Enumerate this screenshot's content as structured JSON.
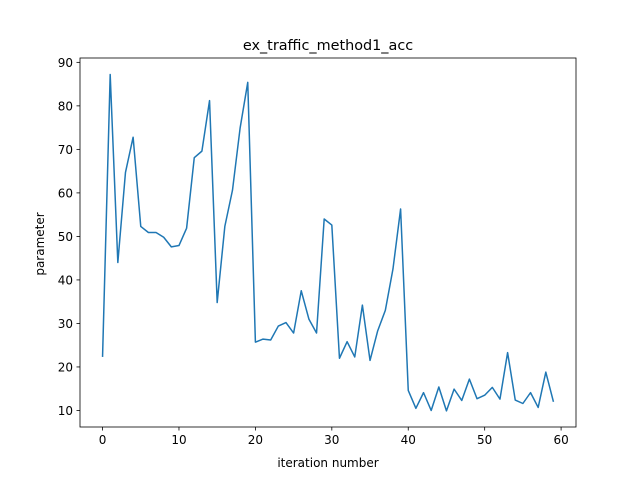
{
  "chart_data": {
    "type": "line",
    "title": "ex_traffic_method1_acc",
    "xlabel": "iteration number",
    "ylabel": "parameter",
    "xlim": [
      -2.95,
      61.95
    ],
    "ylim": [
      6.2,
      91.0
    ],
    "xticks": [
      0,
      10,
      20,
      30,
      40,
      50,
      60
    ],
    "yticks": [
      10,
      20,
      30,
      40,
      50,
      60,
      70,
      80,
      90
    ],
    "grid": false,
    "legend": "none",
    "series": [
      {
        "color": "#1f77b4",
        "x": [
          0,
          1,
          2,
          3,
          4,
          5,
          6,
          7,
          8,
          9,
          10,
          11,
          12,
          13,
          14,
          15,
          16,
          17,
          18,
          19,
          20,
          21,
          22,
          23,
          24,
          25,
          26,
          27,
          28,
          29,
          30,
          31,
          32,
          33,
          34,
          35,
          36,
          37,
          38,
          39,
          40,
          41,
          42,
          43,
          44,
          45,
          46,
          47,
          48,
          49,
          50,
          51,
          52,
          53,
          54,
          55,
          56,
          57,
          58,
          59
        ],
        "y": [
          22.3,
          87.2,
          44.0,
          64.7,
          72.8,
          52.3,
          50.9,
          50.9,
          49.8,
          47.6,
          47.9,
          51.9,
          68.1,
          69.6,
          81.2,
          34.8,
          52.3,
          60.6,
          74.9,
          85.4,
          25.7,
          26.4,
          26.2,
          29.4,
          30.2,
          27.8,
          37.5,
          31.0,
          27.8,
          54.0,
          52.6,
          22.0,
          25.8,
          22.3,
          34.2,
          21.5,
          28.3,
          33.0,
          42.5,
          56.3,
          14.6,
          10.5,
          14.1,
          10.0,
          15.4,
          9.9,
          14.9,
          12.3,
          17.2,
          12.7,
          13.5,
          15.3,
          12.6,
          23.3,
          12.4,
          11.6,
          14.1,
          10.7,
          18.8,
          12.0
        ]
      }
    ]
  }
}
